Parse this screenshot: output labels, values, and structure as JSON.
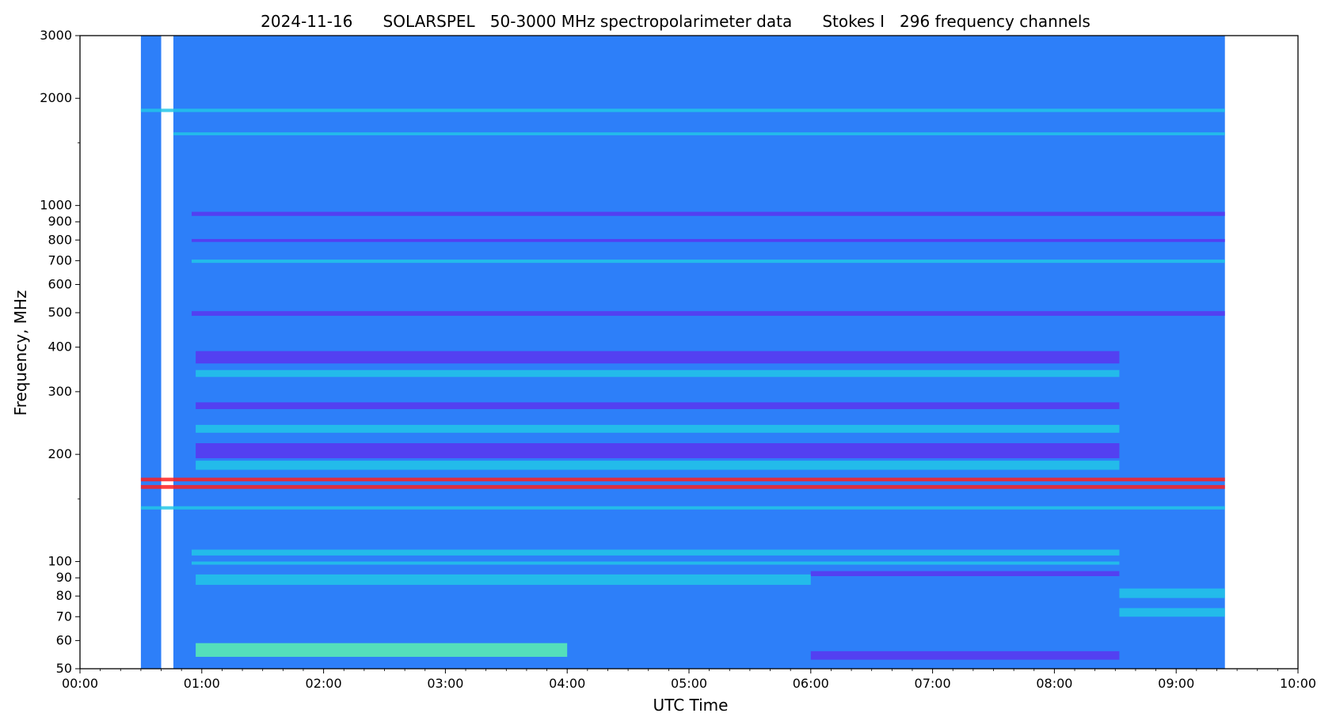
{
  "chart_data": {
    "type": "heatmap",
    "title": "2024-11-16      SOLARSPEL   50-3000 MHz spectropolarimeter data      Stokes I   296 frequency channels",
    "xlabel": "UTC Time",
    "ylabel": "Frequency, MHz",
    "x_scale": "time",
    "y_scale": "log",
    "xlim": [
      "00:00",
      "10:00"
    ],
    "ylim": [
      50,
      3000
    ],
    "x_ticks": [
      "00:00",
      "01:00",
      "02:00",
      "03:00",
      "04:00",
      "05:00",
      "06:00",
      "07:00",
      "08:00",
      "09:00",
      "10:00"
    ],
    "y_ticks": [
      {
        "value": 50,
        "label": "50"
      },
      {
        "value": 60,
        "label": "60"
      },
      {
        "value": 70,
        "label": "70"
      },
      {
        "value": 80,
        "label": "80"
      },
      {
        "value": 90,
        "label": "90"
      },
      {
        "value": 100,
        "label": "100"
      },
      {
        "value": 200,
        "label": "200"
      },
      {
        "value": 300,
        "label": "300"
      },
      {
        "value": 400,
        "label": "400"
      },
      {
        "value": 500,
        "label": "500"
      },
      {
        "value": 600,
        "label": "600"
      },
      {
        "value": 700,
        "label": "700"
      },
      {
        "value": 800,
        "label": "800"
      },
      {
        "value": 900,
        "label": "900"
      },
      {
        "value": 1000,
        "label": "1000"
      },
      {
        "value": 2000,
        "label": "2000"
      },
      {
        "value": 3000,
        "label": "3000"
      }
    ],
    "colors": {
      "background_level": "#2d7ff9",
      "quiet": "#2a6df2",
      "enhanced": "#22c6e8",
      "strong": "#5cf0b0",
      "depressed": "#5a35f0",
      "interference": "#ff2020"
    },
    "data_segments": [
      {
        "start": "00:30",
        "end": "00:40"
      },
      {
        "start": "00:46",
        "end": "09:24"
      }
    ],
    "bands": [
      {
        "freq": [
          1830,
          1870
        ],
        "start": "00:30",
        "end": "09:24",
        "level": "enhanced"
      },
      {
        "freq": [
          1575,
          1605
        ],
        "start": "00:46",
        "end": "09:24",
        "level": "enhanced"
      },
      {
        "freq": [
          935,
          960
        ],
        "start": "00:55",
        "end": "09:24",
        "level": "depressed"
      },
      {
        "freq": [
          790,
          805
        ],
        "start": "00:55",
        "end": "09:24",
        "level": "depressed"
      },
      {
        "freq": [
          690,
          705
        ],
        "start": "00:55",
        "end": "09:24",
        "level": "enhanced"
      },
      {
        "freq": [
          490,
          505
        ],
        "start": "00:55",
        "end": "09:24",
        "level": "depressed"
      },
      {
        "freq": [
          360,
          390
        ],
        "start": "00:57",
        "end": "08:32",
        "level": "depressed"
      },
      {
        "freq": [
          330,
          345
        ],
        "start": "00:57",
        "end": "08:32",
        "level": "enhanced"
      },
      {
        "freq": [
          268,
          280
        ],
        "start": "00:57",
        "end": "08:32",
        "level": "depressed"
      },
      {
        "freq": [
          230,
          242
        ],
        "start": "00:57",
        "end": "08:32",
        "level": "enhanced"
      },
      {
        "freq": [
          195,
          215
        ],
        "start": "00:57",
        "end": "08:32",
        "level": "depressed"
      },
      {
        "freq": [
          181,
          192
        ],
        "start": "00:57",
        "end": "08:32",
        "level": "enhanced"
      },
      {
        "freq": [
          168,
          172
        ],
        "start": "00:30",
        "end": "09:24",
        "level": "interference"
      },
      {
        "freq": [
          160,
          164
        ],
        "start": "00:30",
        "end": "09:24",
        "level": "interference"
      },
      {
        "freq": [
          140,
          143
        ],
        "start": "00:30",
        "end": "09:24",
        "level": "enhanced"
      },
      {
        "freq": [
          104,
          108
        ],
        "start": "00:55",
        "end": "08:32",
        "level": "enhanced"
      },
      {
        "freq": [
          98,
          100
        ],
        "start": "00:55",
        "end": "08:32",
        "level": "enhanced"
      },
      {
        "freq": [
          91,
          94
        ],
        "start": "06:00",
        "end": "08:32",
        "level": "depressed"
      },
      {
        "freq": [
          86,
          92
        ],
        "start": "00:57",
        "end": "06:00",
        "level": "enhanced"
      },
      {
        "freq": [
          79,
          84
        ],
        "start": "08:32",
        "end": "09:24",
        "level": "enhanced"
      },
      {
        "freq": [
          70,
          74
        ],
        "start": "08:32",
        "end": "09:24",
        "level": "enhanced"
      },
      {
        "freq": [
          54,
          59
        ],
        "start": "00:57",
        "end": "04:00",
        "level": "strong"
      },
      {
        "freq": [
          53,
          56
        ],
        "start": "06:00",
        "end": "08:32",
        "level": "depressed"
      }
    ]
  }
}
